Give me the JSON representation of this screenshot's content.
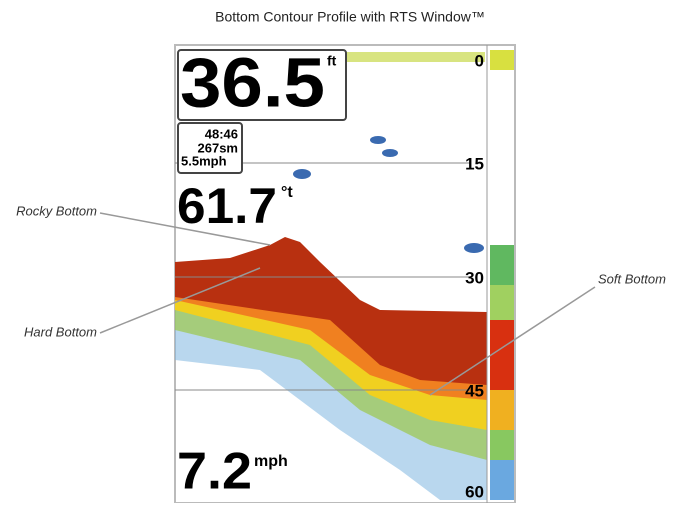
{
  "header": {
    "title": "Bottom Contour Profile with RTS Window™"
  },
  "display": {
    "depth": "36.5",
    "depth_unit": "ft",
    "timer": "48:46",
    "distance": "267sm",
    "speed_small": "5.5mph",
    "temperature": "61.7",
    "temperature_unit": "°t",
    "speed": "7.2",
    "speed_unit": "mph",
    "depth_scale": [
      "0",
      "15",
      "30",
      "45",
      "60"
    ]
  },
  "callouts": {
    "rocky": "Rocky Bottom",
    "hard": "Hard Bottom",
    "soft": "Soft Bottom"
  }
}
